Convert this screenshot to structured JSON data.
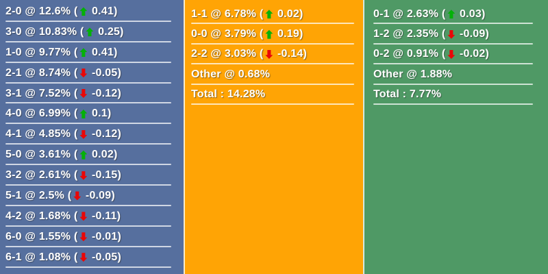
{
  "widget": "correct-score-probabilities",
  "colors": {
    "home_bg": "#566f9e",
    "draw_bg": "#ffa405",
    "away_bg": "#4f9965",
    "divider": "rgba(255,255,255,0.72)",
    "text": "#ffffff",
    "trend_up": "#04b108",
    "trend_down": "#e90707"
  },
  "columns": [
    {
      "id": "home",
      "bg": "#566f9e",
      "rows": [
        {
          "name": "scoreline-2-0",
          "before": "2-0 @ 12.6% (",
          "trend": "up",
          "after": " 0.41)"
        },
        {
          "name": "scoreline-3-0",
          "before": "3-0 @ 10.83% (",
          "trend": "up",
          "after": " 0.25)"
        },
        {
          "name": "scoreline-1-0",
          "before": "1-0 @ 9.77% (",
          "trend": "up",
          "after": " 0.41)"
        },
        {
          "name": "scoreline-2-1",
          "before": "2-1 @ 8.74% (",
          "trend": "down",
          "after": " -0.05)"
        },
        {
          "name": "scoreline-3-1",
          "before": "3-1 @ 7.52% (",
          "trend": "down",
          "after": " -0.12)"
        },
        {
          "name": "scoreline-4-0",
          "before": "4-0 @ 6.99% (",
          "trend": "up",
          "after": " 0.1)"
        },
        {
          "name": "scoreline-4-1",
          "before": "4-1 @ 4.85% (",
          "trend": "down",
          "after": " -0.12)"
        },
        {
          "name": "scoreline-5-0",
          "before": "5-0 @ 3.61% (",
          "trend": "up",
          "after": " 0.02)"
        },
        {
          "name": "scoreline-3-2",
          "before": "3-2 @ 2.61% (",
          "trend": "down",
          "after": " -0.15)"
        },
        {
          "name": "scoreline-5-1",
          "before": "5-1 @ 2.5% (",
          "trend": "down",
          "after": " -0.09)"
        },
        {
          "name": "scoreline-4-2",
          "before": "4-2 @ 1.68% (",
          "trend": "down",
          "after": " -0.11)"
        },
        {
          "name": "scoreline-6-0",
          "before": "6-0 @ 1.55% (",
          "trend": "down",
          "after": " -0.01)"
        },
        {
          "name": "scoreline-6-1",
          "before": "6-1 @ 1.08% (",
          "trend": "down",
          "after": " -0.05)"
        }
      ]
    },
    {
      "id": "draw",
      "bg": "#ffa405",
      "rows": [
        {
          "name": "scoreline-1-1",
          "before": "1-1 @ 6.78% (",
          "trend": "up",
          "after": " 0.02)"
        },
        {
          "name": "scoreline-0-0",
          "before": "0-0 @ 3.79% (",
          "trend": "up",
          "after": " 0.19)"
        },
        {
          "name": "scoreline-2-2",
          "before": "2-2 @ 3.03% (",
          "trend": "down",
          "after": " -0.14)"
        },
        {
          "name": "other",
          "before": "Other @ 0.68%"
        },
        {
          "name": "total",
          "before": "Total : 14.28%"
        }
      ]
    },
    {
      "id": "away",
      "bg": "#4f9965",
      "rows": [
        {
          "name": "scoreline-0-1",
          "before": "0-1 @ 2.63% (",
          "trend": "up",
          "after": " 0.03)"
        },
        {
          "name": "scoreline-1-2",
          "before": "1-2 @ 2.35% (",
          "trend": "down",
          "after": " -0.09)"
        },
        {
          "name": "scoreline-0-2",
          "before": "0-2 @ 0.91% (",
          "trend": "down",
          "after": " -0.02)"
        },
        {
          "name": "other",
          "before": "Other @ 1.88%"
        },
        {
          "name": "total",
          "before": "Total : 7.77%"
        }
      ]
    }
  ]
}
